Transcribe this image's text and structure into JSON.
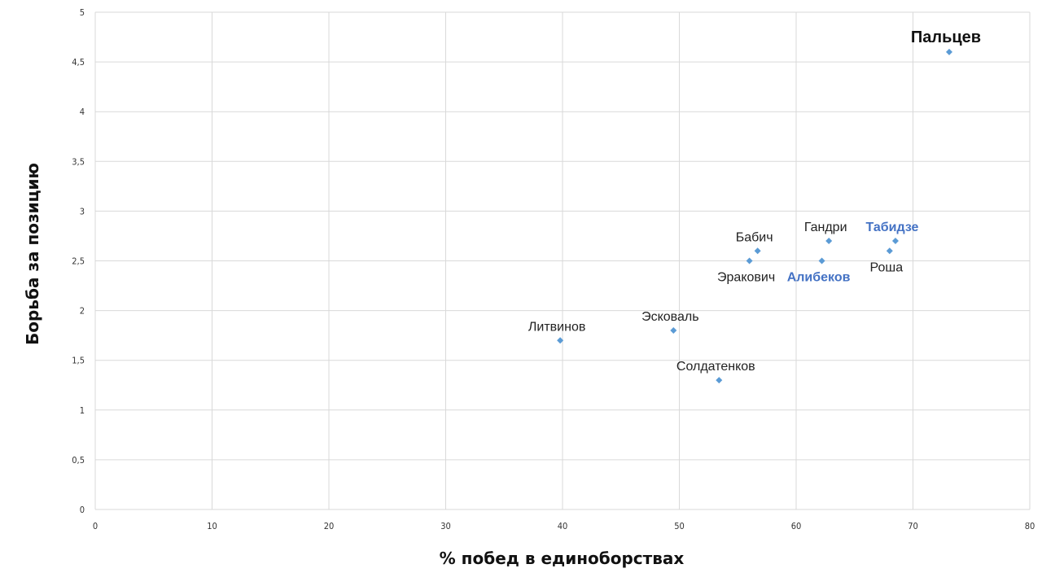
{
  "chart_data": {
    "type": "scatter",
    "xlabel": "% побед в единоборствах",
    "ylabel": "Борьба за позицию",
    "xlim": [
      0,
      80
    ],
    "ylim": [
      0,
      5
    ],
    "x_ticks": [
      "0",
      "10",
      "20",
      "30",
      "40",
      "50",
      "60",
      "70",
      "80"
    ],
    "y_ticks": [
      "0",
      "0,5",
      "1",
      "1,5",
      "2",
      "2,5",
      "3",
      "3,5",
      "4",
      "4,5",
      "5"
    ],
    "grid": true,
    "marker_color": "#5b9bd5",
    "highlight_color": "#4472c4",
    "points": [
      {
        "label": "Пальцев",
        "x": 73.1,
        "y": 4.6,
        "style": "big",
        "label_pos": "above"
      },
      {
        "label": "Табидзе",
        "x": 68.5,
        "y": 2.7,
        "style": "blue",
        "label_pos": "above"
      },
      {
        "label": "Роша",
        "x": 68.0,
        "y": 2.6,
        "style": "normal",
        "label_pos": "below"
      },
      {
        "label": "Гандри",
        "x": 62.8,
        "y": 2.7,
        "style": "normal",
        "label_pos": "above"
      },
      {
        "label": "Алибеков",
        "x": 62.2,
        "y": 2.5,
        "style": "blue",
        "label_pos": "below"
      },
      {
        "label": "Бабич",
        "x": 56.7,
        "y": 2.6,
        "style": "normal",
        "label_pos": "above"
      },
      {
        "label": "Эракович",
        "x": 56.0,
        "y": 2.5,
        "style": "normal",
        "label_pos": "below"
      },
      {
        "label": "Эсковаль",
        "x": 49.5,
        "y": 1.8,
        "style": "normal",
        "label_pos": "above"
      },
      {
        "label": "Литвинов",
        "x": 39.8,
        "y": 1.7,
        "style": "normal",
        "label_pos": "above"
      },
      {
        "label": "Солдатенков",
        "x": 53.4,
        "y": 1.3,
        "style": "normal",
        "label_pos": "above"
      }
    ]
  }
}
